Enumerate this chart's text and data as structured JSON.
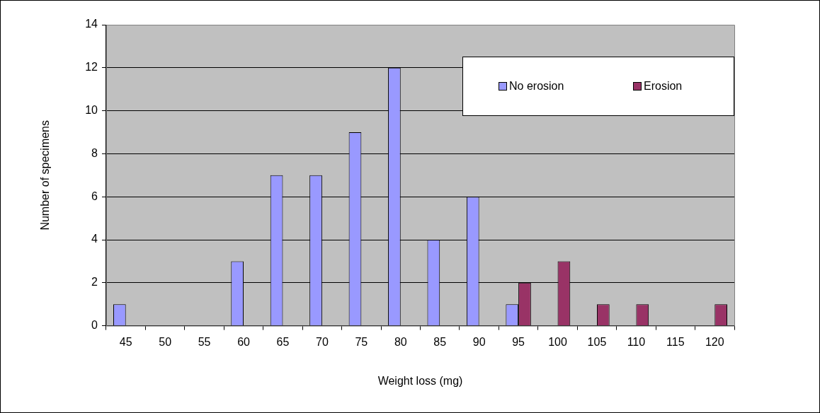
{
  "chart_data": {
    "type": "bar",
    "xlabel": "Weight loss (mg)",
    "ylabel": "Number of specimens",
    "categories": [
      "45",
      "50",
      "55",
      "60",
      "65",
      "70",
      "75",
      "80",
      "85",
      "90",
      "95",
      "100",
      "105",
      "110",
      "115",
      "120"
    ],
    "series": [
      {
        "name": "No erosion",
        "color": "#9999ff",
        "values": [
          1,
          0,
          0,
          3,
          7,
          7,
          9,
          12,
          4,
          6,
          1,
          0,
          0,
          0,
          0,
          0
        ]
      },
      {
        "name": "Erosion",
        "color": "#993366",
        "values": [
          0,
          0,
          0,
          0,
          0,
          0,
          0,
          0,
          0,
          0,
          2,
          3,
          1,
          1,
          0,
          1
        ]
      }
    ],
    "ylim": [
      0,
      14
    ],
    "yticks": [
      0,
      2,
      4,
      6,
      8,
      10,
      12,
      14
    ],
    "grid": "y",
    "legend": "top right"
  }
}
